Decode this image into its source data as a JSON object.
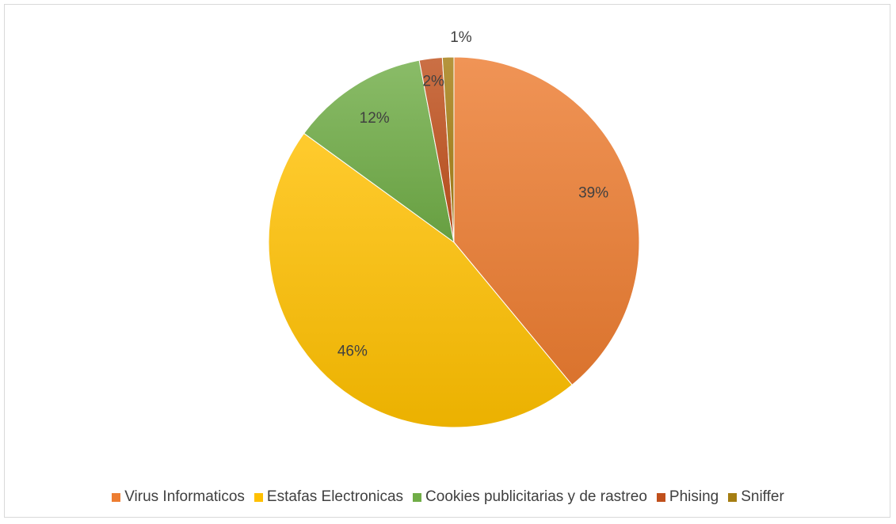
{
  "chart_data": {
    "type": "pie",
    "categories": [
      "Virus Informaticos",
      "Estafas Electronicas",
      "Cookies publicitarias y de rastreo",
      "Phising",
      "Sniffer"
    ],
    "values": [
      39,
      46,
      12,
      2,
      1
    ],
    "labels": [
      "39%",
      "46%",
      "12%",
      "2%",
      "1%"
    ],
    "colors": [
      "#ED7D31",
      "#FFC000",
      "#70AD47",
      "#C0501C",
      "#A57E12"
    ],
    "start_angle_deg": 0,
    "direction": "clockwise",
    "legend_position": "bottom"
  }
}
